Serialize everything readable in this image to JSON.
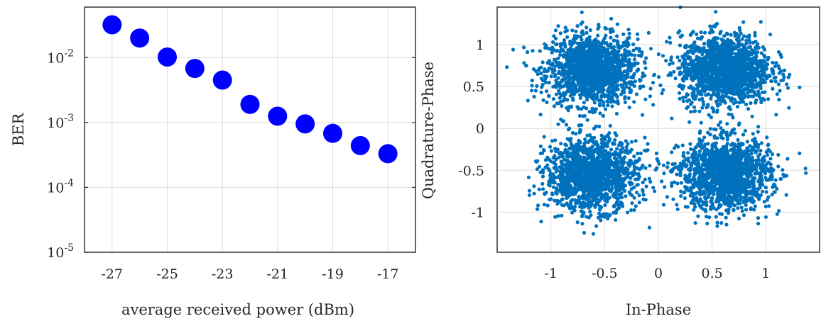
{
  "chart_data": [
    {
      "type": "scatter",
      "xlabel": "average received power (dBm)",
      "ylabel": "BER",
      "x_ticks": [
        "-27",
        "-25",
        "-23",
        "-21",
        "-19",
        "-17"
      ],
      "x_grid": [
        -27,
        -25,
        -23,
        -21,
        -19,
        -17
      ],
      "xlim": [
        -28,
        -16
      ],
      "y_scale": "log",
      "ylim": [
        1e-05,
        0.06
      ],
      "y_ticks": [
        {
          "value": 1e-05,
          "base": "10",
          "exp": "-5"
        },
        {
          "value": 0.0001,
          "base": "10",
          "exp": "-4"
        },
        {
          "value": 0.001,
          "base": "10",
          "exp": "-3"
        },
        {
          "value": 0.01,
          "base": "10",
          "exp": "-2"
        }
      ],
      "grid": true,
      "marker_color": "#0000ff",
      "x": [
        -27,
        -26,
        -25,
        -24,
        -23,
        -22,
        -21,
        -20,
        -19,
        -18,
        -17
      ],
      "y": [
        0.032,
        0.02,
        0.0102,
        0.0068,
        0.0045,
        0.0019,
        0.00125,
        0.00095,
        0.00068,
        0.00044,
        0.00033
      ]
    },
    {
      "type": "scatter",
      "xlabel": "In-Phase",
      "ylabel": "Quadrature-Phase",
      "x_ticks": [
        "-1",
        "-0.5",
        "0",
        "0.5",
        "1"
      ],
      "x_tick_values": [
        -1,
        -0.5,
        0,
        0.5,
        1
      ],
      "y_ticks": [
        "-1",
        "-0.5",
        "0",
        "0.5",
        "1"
      ],
      "y_tick_values": [
        -1,
        -0.5,
        0,
        0.5,
        1
      ],
      "xlim": [
        -1.5,
        1.5
      ],
      "ylim": [
        -1.48,
        1.45
      ],
      "grid": true,
      "marker_color": "#0072bd",
      "clusters": [
        {
          "center_x": -0.62,
          "center_y": 0.7,
          "spread": 0.21
        },
        {
          "center_x": 0.62,
          "center_y": 0.7,
          "spread": 0.21
        },
        {
          "center_x": -0.62,
          "center_y": -0.55,
          "spread": 0.21
        },
        {
          "center_x": 0.62,
          "center_y": -0.55,
          "spread": 0.21
        }
      ],
      "points_per_cluster": 1500
    }
  ]
}
